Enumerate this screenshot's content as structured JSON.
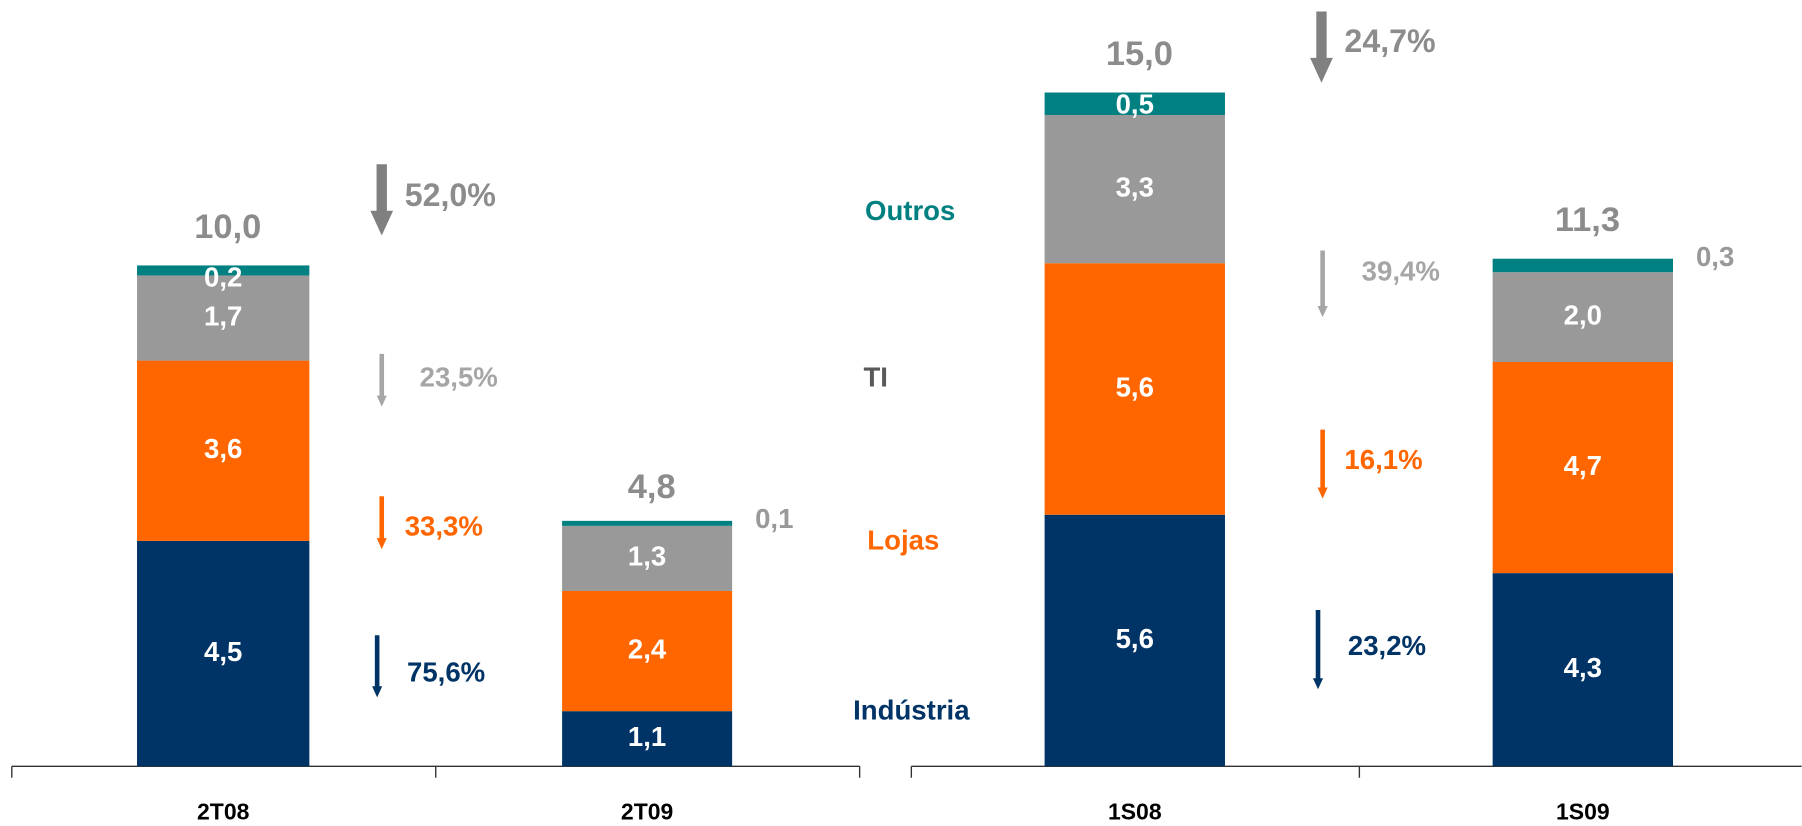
{
  "chart_data": [
    {
      "type": "stacked_bar",
      "categories": [
        "2T08",
        "2T09"
      ],
      "ylim": [
        0,
        15.3
      ],
      "series": [
        {
          "name": "Indústria",
          "color": "#003366",
          "values": [
            4.5,
            1.1
          ],
          "value_labels": [
            "4,5",
            "1,1"
          ],
          "change": "75,6%"
        },
        {
          "name": "Lojas",
          "color": "#ff6600",
          "values": [
            3.6,
            2.4
          ],
          "value_labels": [
            "3,6",
            "2,4"
          ],
          "change": "33,3%"
        },
        {
          "name": "TI",
          "color": "#999999",
          "values": [
            1.7,
            1.3
          ],
          "value_labels": [
            "1,7",
            "1,3"
          ],
          "change": "23,5%"
        },
        {
          "name": "Outros",
          "color": "#008080",
          "values": [
            0.2,
            0.1
          ],
          "value_labels": [
            "0,2",
            "0,1"
          ]
        }
      ],
      "totals": [
        10.0,
        4.8
      ],
      "total_labels": [
        "10,0",
        "4,8"
      ],
      "total_change": "52,0%"
    },
    {
      "type": "stacked_bar",
      "categories": [
        "1S08",
        "1S09"
      ],
      "ylim": [
        0,
        17.06
      ],
      "series": [
        {
          "color": "#003366",
          "values": [
            5.6,
            4.3
          ],
          "value_labels": [
            "5,6",
            "4,3"
          ],
          "change": "23,2%"
        },
        {
          "color": "#ff6600",
          "values": [
            5.6,
            4.7
          ],
          "value_labels": [
            "5,6",
            "4,7"
          ],
          "change": "16,1%"
        },
        {
          "color": "#999999",
          "values": [
            3.3,
            2.0
          ],
          "value_labels": [
            "3,3",
            "2,0"
          ],
          "change": "39,4%"
        },
        {
          "color": "#008080",
          "values": [
            0.5,
            0.3
          ],
          "value_labels": [
            "0,5",
            "0,3"
          ]
        }
      ],
      "totals": [
        15.0,
        11.3
      ],
      "total_labels": [
        "15,0",
        "11,3"
      ],
      "total_change": "24,7%"
    }
  ]
}
